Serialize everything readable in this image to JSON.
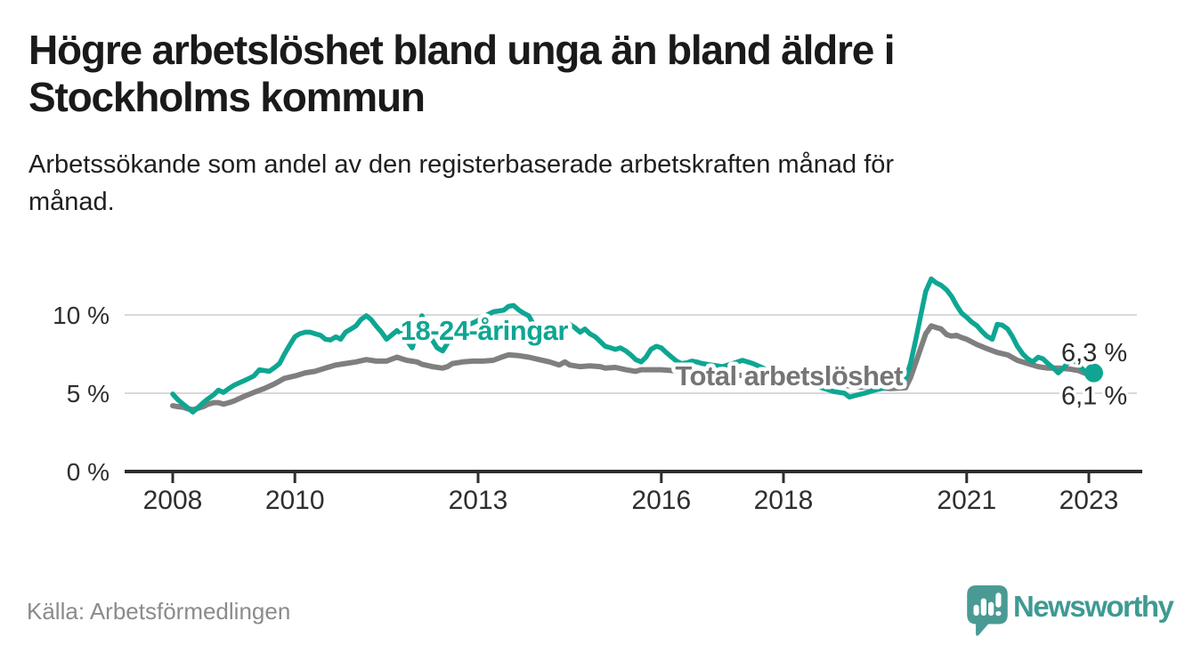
{
  "header": {
    "title_lines": [
      "Högre arbetslöshet bland unga än bland äldre i",
      "Stockholms kommun"
    ],
    "subtitle_lines": [
      "Arbetssökande som andel av den registerbaserade arbetskraften månad för",
      "månad."
    ]
  },
  "footer": {
    "source": "Källa: Arbetsförmedlingen",
    "brand_name": "Newsworthy",
    "brand_color": "#3f9a93"
  },
  "chart_data": {
    "type": "line",
    "unit": "%",
    "grid": "horizontal-only",
    "legend_position": "inline-labels",
    "xlim": [
      2007.2,
      2023.85
    ],
    "ylim": [
      0,
      12.5
    ],
    "x_ticks": [
      {
        "year": 2008,
        "label": "2008"
      },
      {
        "year": 2010,
        "label": "2010"
      },
      {
        "year": 2013,
        "label": "2013"
      },
      {
        "year": 2016,
        "label": "2016"
      },
      {
        "year": 2018,
        "label": "2018"
      },
      {
        "year": 2021,
        "label": "2021"
      },
      {
        "year": 2023,
        "label": "2023"
      }
    ],
    "y_ticks": [
      {
        "value": 0,
        "label": "0 %",
        "grid": false
      },
      {
        "value": 5,
        "label": "5 %",
        "grid": true
      },
      {
        "value": 10,
        "label": "10 %",
        "grid": true
      }
    ],
    "axis_color": "#2d2d2d",
    "grid_color": "#d9d9d9",
    "series": [
      {
        "name": "Total arbetslöshet",
        "color": "#7f7f7f",
        "label_color": "#757575",
        "stroke_width": 6,
        "label_at": {
          "year": 2018.09,
          "value": 5.5
        },
        "end_label": "6,1 %",
        "end_label_dy": 32,
        "end_dot": false,
        "points": [
          [
            2008.0,
            4.2
          ],
          [
            2008.08,
            4.15
          ],
          [
            2008.17,
            4.1
          ],
          [
            2008.25,
            4.0
          ],
          [
            2008.33,
            3.95
          ],
          [
            2008.42,
            4.05
          ],
          [
            2008.5,
            4.15
          ],
          [
            2008.58,
            4.3
          ],
          [
            2008.67,
            4.4
          ],
          [
            2008.75,
            4.4
          ],
          [
            2008.83,
            4.3
          ],
          [
            2008.92,
            4.4
          ],
          [
            2009.0,
            4.5
          ],
          [
            2009.17,
            4.8
          ],
          [
            2009.33,
            5.05
          ],
          [
            2009.5,
            5.3
          ],
          [
            2009.67,
            5.6
          ],
          [
            2009.83,
            5.95
          ],
          [
            2010.0,
            6.1
          ],
          [
            2010.17,
            6.3
          ],
          [
            2010.33,
            6.4
          ],
          [
            2010.5,
            6.6
          ],
          [
            2010.67,
            6.8
          ],
          [
            2010.83,
            6.9
          ],
          [
            2011.0,
            7.0
          ],
          [
            2011.17,
            7.15
          ],
          [
            2011.33,
            7.05
          ],
          [
            2011.5,
            7.05
          ],
          [
            2011.67,
            7.3
          ],
          [
            2011.83,
            7.1
          ],
          [
            2012.0,
            7.0
          ],
          [
            2012.08,
            6.85
          ],
          [
            2012.25,
            6.7
          ],
          [
            2012.42,
            6.6
          ],
          [
            2012.5,
            6.7
          ],
          [
            2012.58,
            6.9
          ],
          [
            2012.75,
            7.0
          ],
          [
            2012.92,
            7.05
          ],
          [
            2013.08,
            7.05
          ],
          [
            2013.25,
            7.1
          ],
          [
            2013.42,
            7.35
          ],
          [
            2013.5,
            7.45
          ],
          [
            2013.67,
            7.4
          ],
          [
            2013.83,
            7.3
          ],
          [
            2014.0,
            7.15
          ],
          [
            2014.17,
            7.0
          ],
          [
            2014.33,
            6.8
          ],
          [
            2014.42,
            7.0
          ],
          [
            2014.5,
            6.8
          ],
          [
            2014.67,
            6.7
          ],
          [
            2014.83,
            6.75
          ],
          [
            2015.0,
            6.7
          ],
          [
            2015.08,
            6.6
          ],
          [
            2015.25,
            6.65
          ],
          [
            2015.42,
            6.5
          ],
          [
            2015.58,
            6.4
          ],
          [
            2015.67,
            6.5
          ],
          [
            2015.83,
            6.5
          ],
          [
            2016.0,
            6.5
          ],
          [
            2016.17,
            6.45
          ],
          [
            2016.33,
            6.4
          ],
          [
            2016.5,
            6.35
          ],
          [
            2016.75,
            6.3
          ],
          [
            2017.0,
            6.2
          ],
          [
            2017.25,
            6.15
          ],
          [
            2017.5,
            6.1
          ],
          [
            2017.75,
            6.0
          ],
          [
            2018.0,
            5.9
          ],
          [
            2018.25,
            5.8
          ],
          [
            2018.5,
            5.7
          ],
          [
            2018.75,
            5.6
          ],
          [
            2019.0,
            5.5
          ],
          [
            2019.25,
            5.4
          ],
          [
            2019.5,
            5.35
          ],
          [
            2019.75,
            5.3
          ],
          [
            2020.0,
            5.35
          ],
          [
            2020.08,
            6.0
          ],
          [
            2020.17,
            7.0
          ],
          [
            2020.25,
            7.9
          ],
          [
            2020.33,
            8.8
          ],
          [
            2020.42,
            9.3
          ],
          [
            2020.5,
            9.2
          ],
          [
            2020.58,
            9.1
          ],
          [
            2020.67,
            8.75
          ],
          [
            2020.75,
            8.65
          ],
          [
            2020.83,
            8.7
          ],
          [
            2020.92,
            8.55
          ],
          [
            2021.0,
            8.45
          ],
          [
            2021.17,
            8.1
          ],
          [
            2021.33,
            7.85
          ],
          [
            2021.5,
            7.6
          ],
          [
            2021.67,
            7.45
          ],
          [
            2021.83,
            7.1
          ],
          [
            2022.0,
            6.9
          ],
          [
            2022.17,
            6.7
          ],
          [
            2022.33,
            6.6
          ],
          [
            2022.5,
            6.6
          ],
          [
            2022.67,
            6.55
          ],
          [
            2022.83,
            6.45
          ],
          [
            2022.92,
            6.3
          ],
          [
            2023.0,
            6.2
          ],
          [
            2023.08,
            6.1
          ]
        ]
      },
      {
        "name": "18-24-åringar",
        "color": "#0ea693",
        "label_color": "#0ea693",
        "stroke_width": 5.5,
        "label_at": {
          "year": 2013.1,
          "value": 8.4
        },
        "end_label": "6,3 %",
        "end_label_dy": -13,
        "end_dot": true,
        "points": [
          [
            2008.0,
            4.95
          ],
          [
            2008.08,
            4.6
          ],
          [
            2008.17,
            4.3
          ],
          [
            2008.25,
            4.05
          ],
          [
            2008.33,
            3.8
          ],
          [
            2008.42,
            4.1
          ],
          [
            2008.5,
            4.4
          ],
          [
            2008.58,
            4.65
          ],
          [
            2008.67,
            4.9
          ],
          [
            2008.75,
            5.2
          ],
          [
            2008.83,
            5.05
          ],
          [
            2008.92,
            5.3
          ],
          [
            2009.0,
            5.5
          ],
          [
            2009.08,
            5.65
          ],
          [
            2009.17,
            5.8
          ],
          [
            2009.25,
            5.95
          ],
          [
            2009.33,
            6.1
          ],
          [
            2009.42,
            6.5
          ],
          [
            2009.5,
            6.45
          ],
          [
            2009.58,
            6.4
          ],
          [
            2009.67,
            6.65
          ],
          [
            2009.75,
            6.9
          ],
          [
            2009.83,
            7.5
          ],
          [
            2009.92,
            8.1
          ],
          [
            2010.0,
            8.6
          ],
          [
            2010.08,
            8.8
          ],
          [
            2010.17,
            8.9
          ],
          [
            2010.25,
            8.9
          ],
          [
            2010.33,
            8.8
          ],
          [
            2010.42,
            8.7
          ],
          [
            2010.5,
            8.45
          ],
          [
            2010.58,
            8.4
          ],
          [
            2010.67,
            8.6
          ],
          [
            2010.75,
            8.45
          ],
          [
            2010.83,
            8.9
          ],
          [
            2010.92,
            9.1
          ],
          [
            2011.0,
            9.3
          ],
          [
            2011.08,
            9.7
          ],
          [
            2011.17,
            9.95
          ],
          [
            2011.25,
            9.7
          ],
          [
            2011.33,
            9.3
          ],
          [
            2011.42,
            8.9
          ],
          [
            2011.5,
            8.45
          ],
          [
            2011.58,
            8.7
          ],
          [
            2011.67,
            9.0
          ],
          [
            2011.75,
            8.8
          ],
          [
            2011.83,
            8.4
          ],
          [
            2011.92,
            7.9
          ],
          [
            2012.0,
            8.9
          ],
          [
            2012.08,
            9.95
          ],
          [
            2012.17,
            9.1
          ],
          [
            2012.25,
            8.4
          ],
          [
            2012.33,
            7.9
          ],
          [
            2012.42,
            7.7
          ],
          [
            2012.5,
            8.2
          ],
          [
            2012.58,
            8.6
          ],
          [
            2012.67,
            8.9
          ],
          [
            2012.75,
            9.15
          ],
          [
            2012.83,
            9.35
          ],
          [
            2012.92,
            9.5
          ],
          [
            2013.0,
            9.65
          ],
          [
            2013.08,
            9.85
          ],
          [
            2013.17,
            10.05
          ],
          [
            2013.25,
            10.2
          ],
          [
            2013.33,
            10.25
          ],
          [
            2013.42,
            10.3
          ],
          [
            2013.5,
            10.55
          ],
          [
            2013.58,
            10.6
          ],
          [
            2013.67,
            10.3
          ],
          [
            2013.75,
            10.1
          ],
          [
            2013.83,
            9.95
          ],
          [
            2013.92,
            9.3
          ],
          [
            2014.0,
            8.95
          ],
          [
            2014.08,
            8.8
          ],
          [
            2014.17,
            8.7
          ],
          [
            2014.25,
            8.3
          ],
          [
            2014.33,
            8.6
          ],
          [
            2014.42,
            9.1
          ],
          [
            2014.5,
            9.4
          ],
          [
            2014.58,
            9.2
          ],
          [
            2014.67,
            8.9
          ],
          [
            2014.75,
            9.1
          ],
          [
            2014.83,
            8.8
          ],
          [
            2014.92,
            8.6
          ],
          [
            2015.0,
            8.3
          ],
          [
            2015.08,
            8.0
          ],
          [
            2015.17,
            7.9
          ],
          [
            2015.25,
            7.8
          ],
          [
            2015.33,
            7.9
          ],
          [
            2015.42,
            7.7
          ],
          [
            2015.5,
            7.45
          ],
          [
            2015.58,
            7.15
          ],
          [
            2015.67,
            7.0
          ],
          [
            2015.75,
            7.3
          ],
          [
            2015.83,
            7.8
          ],
          [
            2015.92,
            8.0
          ],
          [
            2016.0,
            7.9
          ],
          [
            2016.08,
            7.6
          ],
          [
            2016.17,
            7.3
          ],
          [
            2016.25,
            7.05
          ],
          [
            2016.33,
            6.9
          ],
          [
            2016.42,
            6.95
          ],
          [
            2016.5,
            7.05
          ],
          [
            2016.58,
            7.0
          ],
          [
            2016.67,
            6.9
          ],
          [
            2016.83,
            6.8
          ],
          [
            2017.0,
            6.7
          ],
          [
            2017.17,
            6.9
          ],
          [
            2017.33,
            7.1
          ],
          [
            2017.5,
            6.9
          ],
          [
            2017.67,
            6.6
          ],
          [
            2017.83,
            6.3
          ],
          [
            2018.0,
            6.1
          ],
          [
            2018.17,
            5.9
          ],
          [
            2018.33,
            5.7
          ],
          [
            2018.5,
            5.5
          ],
          [
            2018.67,
            5.3
          ],
          [
            2018.83,
            5.1
          ],
          [
            2019.0,
            5.0
          ],
          [
            2019.08,
            4.75
          ],
          [
            2019.17,
            4.85
          ],
          [
            2019.33,
            5.0
          ],
          [
            2019.5,
            5.2
          ],
          [
            2019.67,
            5.35
          ],
          [
            2019.83,
            5.55
          ],
          [
            2019.92,
            5.7
          ],
          [
            2020.0,
            5.95
          ],
          [
            2020.08,
            6.9
          ],
          [
            2020.17,
            8.5
          ],
          [
            2020.25,
            10.0
          ],
          [
            2020.33,
            11.5
          ],
          [
            2020.42,
            12.3
          ],
          [
            2020.5,
            12.05
          ],
          [
            2020.58,
            11.9
          ],
          [
            2020.67,
            11.6
          ],
          [
            2020.75,
            11.2
          ],
          [
            2020.83,
            10.65
          ],
          [
            2020.92,
            10.1
          ],
          [
            2021.0,
            9.85
          ],
          [
            2021.08,
            9.55
          ],
          [
            2021.17,
            9.3
          ],
          [
            2021.25,
            8.95
          ],
          [
            2021.33,
            8.65
          ],
          [
            2021.42,
            8.45
          ],
          [
            2021.5,
            9.4
          ],
          [
            2021.58,
            9.35
          ],
          [
            2021.67,
            9.1
          ],
          [
            2021.75,
            8.6
          ],
          [
            2021.83,
            8.0
          ],
          [
            2021.92,
            7.5
          ],
          [
            2022.0,
            7.2
          ],
          [
            2022.08,
            7.0
          ],
          [
            2022.17,
            7.3
          ],
          [
            2022.25,
            7.2
          ],
          [
            2022.33,
            6.9
          ],
          [
            2022.42,
            6.6
          ],
          [
            2022.5,
            6.3
          ],
          [
            2022.58,
            6.6
          ],
          [
            2022.67,
            7.0
          ],
          [
            2022.75,
            7.15
          ],
          [
            2022.83,
            6.8
          ],
          [
            2022.92,
            6.45
          ],
          [
            2023.0,
            6.15
          ],
          [
            2023.08,
            6.3
          ]
        ]
      }
    ]
  }
}
